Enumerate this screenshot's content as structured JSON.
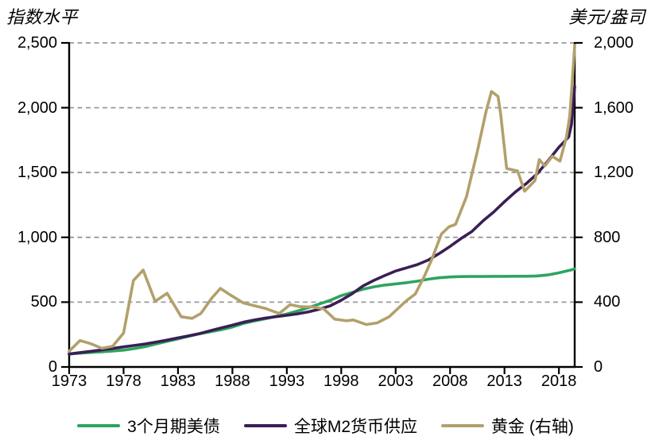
{
  "chart_data": {
    "type": "line",
    "title": "",
    "left_axis": {
      "title": "指数水平",
      "min": 0,
      "max": 2500,
      "tick_values": [
        0,
        500,
        1000,
        1500,
        2000,
        2500
      ],
      "tick_labels": [
        "0",
        "500",
        "1,000",
        "1,500",
        "2,000",
        "2,500"
      ]
    },
    "right_axis": {
      "title": "美元/盎司",
      "min": 0,
      "max": 2000,
      "tick_values": [
        0,
        400,
        800,
        1200,
        1600,
        2000
      ],
      "tick_labels": [
        "0",
        "400",
        "800",
        "1,200",
        "1,600",
        "2,000"
      ]
    },
    "x_axis": {
      "tick_years": [
        1973,
        1978,
        1983,
        1988,
        1993,
        1998,
        2003,
        2008,
        2013,
        2018
      ],
      "tick_labels": [
        "1973",
        "1978",
        "1983",
        "1988",
        "1993",
        "1998",
        "2003",
        "2008",
        "2013",
        "2018"
      ]
    },
    "x_range": [
      1973,
      2019.45
    ],
    "grid": {
      "color": "#9a9a9a",
      "dash": "6 4.5"
    },
    "axis_color": "#000000",
    "legend_position": "bottom-center",
    "series": [
      {
        "id": "treasury-3m",
        "name": "3个月期美债",
        "axis": "left",
        "color": "#2ea45e",
        "points": [
          [
            1973,
            100
          ],
          [
            1974,
            106
          ],
          [
            1975,
            112
          ],
          [
            1976,
            117
          ],
          [
            1977,
            123
          ],
          [
            1978,
            130
          ],
          [
            1979,
            142
          ],
          [
            1980,
            157
          ],
          [
            1981,
            178
          ],
          [
            1982,
            198
          ],
          [
            1983,
            216
          ],
          [
            1984,
            237
          ],
          [
            1985,
            256
          ],
          [
            1986,
            272
          ],
          [
            1987,
            288
          ],
          [
            1988,
            308
          ],
          [
            1989,
            335
          ],
          [
            1990,
            355
          ],
          [
            1991,
            372
          ],
          [
            1992,
            390
          ],
          [
            1993,
            408
          ],
          [
            1994,
            432
          ],
          [
            1995,
            458
          ],
          [
            1996,
            486
          ],
          [
            1997,
            515
          ],
          [
            1998,
            550
          ],
          [
            1999,
            575
          ],
          [
            2000,
            600
          ],
          [
            2001,
            618
          ],
          [
            2002,
            632
          ],
          [
            2003,
            641
          ],
          [
            2004,
            650
          ],
          [
            2005,
            662
          ],
          [
            2006,
            677
          ],
          [
            2007,
            688
          ],
          [
            2008,
            694
          ],
          [
            2009,
            697
          ],
          [
            2010,
            698
          ],
          [
            2011,
            698
          ],
          [
            2012,
            699
          ],
          [
            2013,
            699
          ],
          [
            2014,
            700
          ],
          [
            2015,
            700
          ],
          [
            2016,
            702
          ],
          [
            2017,
            710
          ],
          [
            2018,
            726
          ],
          [
            2019,
            746
          ],
          [
            2019.45,
            757
          ]
        ]
      },
      {
        "id": "global-m2",
        "name": "全球M2货币供应",
        "axis": "left",
        "color": "#3b1e55",
        "points": [
          [
            1973,
            100
          ],
          [
            1974,
            111
          ],
          [
            1975,
            121
          ],
          [
            1976,
            132
          ],
          [
            1977,
            143
          ],
          [
            1978,
            155
          ],
          [
            1979,
            166
          ],
          [
            1980,
            178
          ],
          [
            1981,
            192
          ],
          [
            1982,
            207
          ],
          [
            1983,
            224
          ],
          [
            1984,
            240
          ],
          [
            1985,
            258
          ],
          [
            1986,
            280
          ],
          [
            1987,
            302
          ],
          [
            1988,
            322
          ],
          [
            1989,
            345
          ],
          [
            1990,
            362
          ],
          [
            1991,
            377
          ],
          [
            1992,
            388
          ],
          [
            1993,
            398
          ],
          [
            1994,
            410
          ],
          [
            1995,
            425
          ],
          [
            1996,
            446
          ],
          [
            1997,
            472
          ],
          [
            1998,
            515
          ],
          [
            1999,
            565
          ],
          [
            2000,
            625
          ],
          [
            2001,
            668
          ],
          [
            2002,
            705
          ],
          [
            2003,
            740
          ],
          [
            2004,
            765
          ],
          [
            2005,
            790
          ],
          [
            2006,
            825
          ],
          [
            2007,
            875
          ],
          [
            2008,
            930
          ],
          [
            2009,
            990
          ],
          [
            2010,
            1045
          ],
          [
            2011,
            1125
          ],
          [
            2012,
            1195
          ],
          [
            2013,
            1275
          ],
          [
            2014,
            1350
          ],
          [
            2015,
            1415
          ],
          [
            2016,
            1490
          ],
          [
            2017,
            1590
          ],
          [
            2018,
            1695
          ],
          [
            2018.4,
            1730
          ],
          [
            2018.9,
            1775
          ],
          [
            2019.15,
            1870
          ],
          [
            2019.45,
            2165
          ]
        ]
      },
      {
        "id": "gold",
        "name": "黄金 (右轴)",
        "axis": "right",
        "color": "#b2a06c",
        "points": [
          [
            1973,
            97
          ],
          [
            1974,
            163
          ],
          [
            1975,
            143
          ],
          [
            1976,
            115
          ],
          [
            1977,
            128
          ],
          [
            1978,
            210
          ],
          [
            1978.9,
            533
          ],
          [
            1979.8,
            598
          ],
          [
            1980.9,
            405
          ],
          [
            1982,
            455
          ],
          [
            1983.3,
            310
          ],
          [
            1984.3,
            300
          ],
          [
            1985.1,
            330
          ],
          [
            1986.1,
            425
          ],
          [
            1986.9,
            485
          ],
          [
            1987.8,
            445
          ],
          [
            1989,
            395
          ],
          [
            1990,
            378
          ],
          [
            1991,
            362
          ],
          [
            1992.3,
            330
          ],
          [
            1993.3,
            385
          ],
          [
            1994.2,
            372
          ],
          [
            1995.4,
            370
          ],
          [
            1996.4,
            358
          ],
          [
            1997.4,
            295
          ],
          [
            1998.5,
            285
          ],
          [
            1999.1,
            290
          ],
          [
            2000.3,
            262
          ],
          [
            2001.3,
            272
          ],
          [
            2002.4,
            310
          ],
          [
            2003.2,
            360
          ],
          [
            2004,
            410
          ],
          [
            2004.8,
            450
          ],
          [
            2005.6,
            555
          ],
          [
            2006.3,
            660
          ],
          [
            2007.2,
            820
          ],
          [
            2007.9,
            865
          ],
          [
            2008.5,
            880
          ],
          [
            2009.5,
            1050
          ],
          [
            2010.5,
            1330
          ],
          [
            2011.3,
            1575
          ],
          [
            2011.8,
            1700
          ],
          [
            2012.4,
            1670
          ],
          [
            2012.65,
            1560
          ],
          [
            2013.2,
            1225
          ],
          [
            2014.2,
            1210
          ],
          [
            2014.85,
            1085
          ],
          [
            2015.8,
            1150
          ],
          [
            2016.2,
            1280
          ],
          [
            2016.7,
            1240
          ],
          [
            2017.4,
            1300
          ],
          [
            2018.1,
            1270
          ],
          [
            2018.7,
            1420
          ],
          [
            2019,
            1550
          ],
          [
            2019.2,
            1740
          ],
          [
            2019.45,
            1985
          ]
        ]
      }
    ]
  }
}
